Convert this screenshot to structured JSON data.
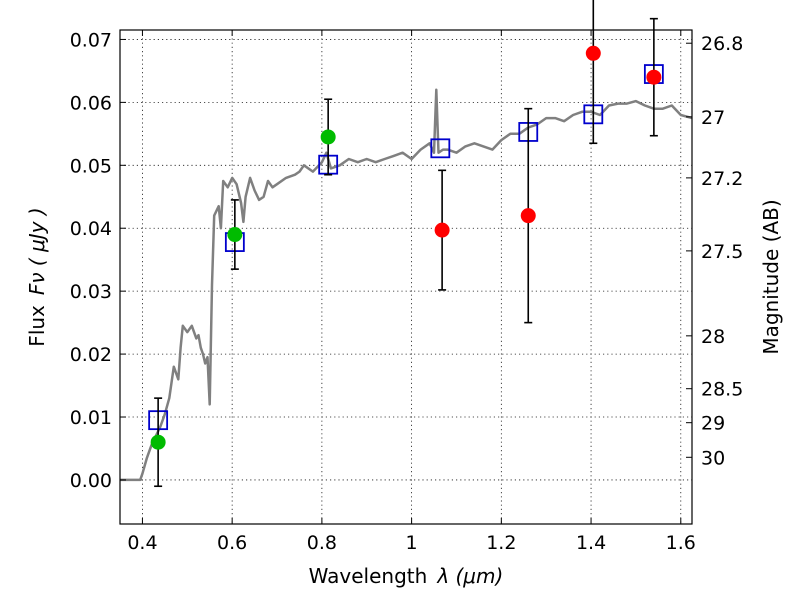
{
  "chart_data": {
    "type": "scatter",
    "xlabel_text": "Wavelength",
    "xlabel_math": "λ (μm)",
    "ylabel_text": "Flux",
    "ylabel_math": "Fν ( μJy )",
    "y2label": "Magnitude (AB)",
    "xlim": [
      0.35,
      1.625
    ],
    "ylim": [
      -0.007,
      0.0715
    ],
    "grid": true,
    "xticks": [
      0.4,
      0.6,
      0.8,
      1.0,
      1.2,
      1.4,
      1.6
    ],
    "xtick_labels": [
      "0.4",
      "0.6",
      "0.8",
      "1",
      "1.2",
      "1.4",
      "1.6"
    ],
    "yticks": [
      0.0,
      0.01,
      0.02,
      0.03,
      0.04,
      0.05,
      0.06,
      0.07
    ],
    "ytick_labels": [
      "0.00",
      "0.01",
      "0.02",
      "0.03",
      "0.04",
      "0.05",
      "0.06",
      "0.07"
    ],
    "mag_ticks": [
      {
        "label": "26.8",
        "flux": 0.0694
      },
      {
        "label": "27",
        "flux": 0.0577
      },
      {
        "label": "27.2",
        "flux": 0.048
      },
      {
        "label": "27.5",
        "flux": 0.0364
      },
      {
        "label": "28",
        "flux": 0.0229
      },
      {
        "label": "28.5",
        "flux": 0.0145
      },
      {
        "label": "29",
        "flux": 0.0091
      },
      {
        "label": "30",
        "flux": 0.0036
      }
    ],
    "series": [
      {
        "marker": "line",
        "color": "#808080",
        "x": [
          0.35,
          0.395,
          0.4,
          0.41,
          0.42,
          0.43,
          0.44,
          0.45,
          0.46,
          0.47,
          0.48,
          0.485,
          0.49,
          0.5,
          0.51,
          0.52,
          0.525,
          0.53,
          0.535,
          0.54,
          0.545,
          0.55,
          0.555,
          0.56,
          0.57,
          0.575,
          0.58,
          0.59,
          0.6,
          0.61,
          0.62,
          0.625,
          0.63,
          0.64,
          0.65,
          0.66,
          0.67,
          0.68,
          0.69,
          0.7,
          0.72,
          0.74,
          0.75,
          0.76,
          0.78,
          0.8,
          0.81,
          0.82,
          0.84,
          0.86,
          0.88,
          0.9,
          0.92,
          0.94,
          0.96,
          0.98,
          1.0,
          1.02,
          1.04,
          1.05,
          1.055,
          1.06,
          1.07,
          1.08,
          1.1,
          1.12,
          1.14,
          1.16,
          1.18,
          1.2,
          1.22,
          1.24,
          1.26,
          1.28,
          1.3,
          1.32,
          1.34,
          1.36,
          1.38,
          1.4,
          1.42,
          1.44,
          1.46,
          1.48,
          1.5,
          1.52,
          1.54,
          1.56,
          1.58,
          1.6,
          1.625
        ],
        "y": [
          0.0,
          0.0,
          0.001,
          0.0035,
          0.0055,
          0.007,
          0.0085,
          0.0105,
          0.013,
          0.018,
          0.016,
          0.021,
          0.0245,
          0.0235,
          0.0245,
          0.0225,
          0.023,
          0.021,
          0.02,
          0.0185,
          0.0195,
          0.012,
          0.031,
          0.042,
          0.0435,
          0.04,
          0.0475,
          0.0465,
          0.048,
          0.047,
          0.044,
          0.041,
          0.045,
          0.048,
          0.046,
          0.0445,
          0.045,
          0.0475,
          0.0465,
          0.047,
          0.048,
          0.0485,
          0.049,
          0.05,
          0.049,
          0.0505,
          0.052,
          0.0495,
          0.05,
          0.051,
          0.0505,
          0.051,
          0.0505,
          0.051,
          0.0515,
          0.052,
          0.051,
          0.0525,
          0.0535,
          0.052,
          0.062,
          0.052,
          0.0525,
          0.0525,
          0.052,
          0.053,
          0.0535,
          0.053,
          0.0525,
          0.054,
          0.055,
          0.055,
          0.056,
          0.0565,
          0.0575,
          0.0575,
          0.057,
          0.058,
          0.0585,
          0.0585,
          0.058,
          0.0595,
          0.0598,
          0.0598,
          0.0602,
          0.0595,
          0.059,
          0.059,
          0.0595,
          0.058,
          0.0575
        ]
      },
      {
        "marker": "square",
        "color": "#0000cc",
        "x": [
          0.435,
          0.606,
          0.814,
          1.064,
          1.26,
          1.405,
          1.54
        ],
        "y": [
          0.0095,
          0.0378,
          0.0501,
          0.0527,
          0.0553,
          0.0581,
          0.0645
        ]
      },
      {
        "marker": "circle",
        "color": "#00bb00",
        "x": [
          0.435,
          0.606,
          0.814
        ],
        "y": [
          0.006,
          0.039,
          0.0545
        ],
        "yerr": [
          0.007,
          0.0055,
          0.006
        ]
      },
      {
        "marker": "circle",
        "color": "#ff0000",
        "x": [
          1.068,
          1.26,
          1.405,
          1.54
        ],
        "y": [
          0.0397,
          0.042,
          0.0678,
          0.064
        ],
        "yerr": [
          0.0095,
          0.017,
          0.0143,
          0.0093
        ]
      }
    ]
  }
}
